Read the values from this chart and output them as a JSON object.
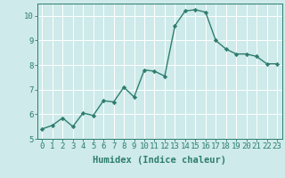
{
  "x": [
    0,
    1,
    2,
    3,
    4,
    5,
    6,
    7,
    8,
    9,
    10,
    11,
    12,
    13,
    14,
    15,
    16,
    17,
    18,
    19,
    20,
    21,
    22,
    23
  ],
  "y": [
    5.4,
    5.55,
    5.85,
    5.5,
    6.05,
    5.95,
    6.55,
    6.5,
    7.1,
    6.7,
    7.8,
    7.75,
    7.55,
    9.6,
    10.2,
    10.25,
    10.15,
    9.0,
    8.65,
    8.45,
    8.45,
    8.35,
    8.05,
    8.05
  ],
  "line_color": "#2e7d6e",
  "marker": "D",
  "marker_size": 2.2,
  "linewidth": 1.0,
  "bg_color": "#ceeaea",
  "grid_color": "#ffffff",
  "xlabel": "Humidex (Indice chaleur)",
  "xlim": [
    -0.5,
    23.5
  ],
  "ylim": [
    5,
    10.5
  ],
  "yticks": [
    5,
    6,
    7,
    8,
    9,
    10
  ],
  "xticks": [
    0,
    1,
    2,
    3,
    4,
    5,
    6,
    7,
    8,
    9,
    10,
    11,
    12,
    13,
    14,
    15,
    16,
    17,
    18,
    19,
    20,
    21,
    22,
    23
  ],
  "label_fontsize": 7.5,
  "tick_fontsize": 6.5
}
